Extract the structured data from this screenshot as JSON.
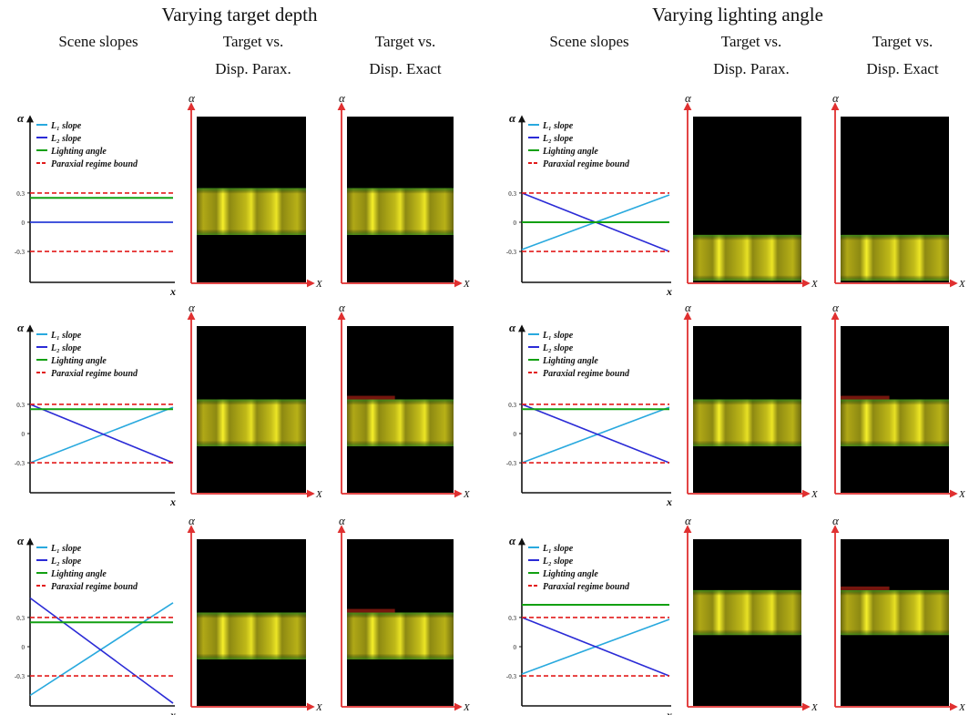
{
  "headings": {
    "left_title": "Varying target depth",
    "right_title": "Varying lighting angle",
    "col_scene": "Scene slopes",
    "col_parax_line1": "Target vs.",
    "col_parax_line2": "Disp. Parax.",
    "col_exact_line1": "Target vs.",
    "col_exact_line2": "Disp. Exact"
  },
  "axes": {
    "slope_y_label": "α",
    "slope_x_label": "x",
    "image_y_label": "α",
    "image_x_label": "X",
    "ticks": [
      "0.3",
      "0",
      "-0.3"
    ]
  },
  "legend": {
    "l1": "L₁ slope",
    "l2": "L₂ slope",
    "light": "Lighting angle",
    "bound": "Paraxial regime bound"
  },
  "colors": {
    "l1": "#29a9de",
    "l2": "#2b2bd6",
    "light": "#12a012",
    "bound": "#e21b1b",
    "axis": "#e03030",
    "band": "#d9d21a"
  },
  "chart_data": [
    {
      "type": "line",
      "group": "Varying target depth",
      "row": 1,
      "ylim": [
        -0.6,
        0.6
      ],
      "tick_values": [
        0.3,
        0,
        -0.3
      ],
      "series": [
        {
          "name": "L₁ slope",
          "x": [
            0,
            1
          ],
          "y": [
            0,
            0
          ]
        },
        {
          "name": "L₂ slope",
          "x": [
            0,
            1
          ],
          "y": [
            0,
            0
          ]
        },
        {
          "name": "Lighting angle",
          "x": [
            0,
            1
          ],
          "y": [
            0.25,
            0.25
          ]
        },
        {
          "name": "Paraxial regime bound",
          "x": [
            0,
            1
          ],
          "y": [
            0.3,
            0.3
          ]
        },
        {
          "name": "Paraxial regime bound",
          "x": [
            0,
            1
          ],
          "y": [
            -0.3,
            -0.3
          ]
        }
      ],
      "parax_band": [
        0.35,
        -0.13
      ],
      "exact_band": [
        0.35,
        -0.13
      ]
    },
    {
      "type": "line",
      "group": "Varying target depth",
      "row": 2,
      "ylim": [
        -0.6,
        0.6
      ],
      "tick_values": [
        0.3,
        0,
        -0.3
      ],
      "series": [
        {
          "name": "L₁ slope",
          "x": [
            0,
            1
          ],
          "y": [
            -0.3,
            0.27
          ]
        },
        {
          "name": "L₂ slope",
          "x": [
            0,
            1
          ],
          "y": [
            0.3,
            -0.3
          ]
        },
        {
          "name": "Lighting angle",
          "x": [
            0,
            1
          ],
          "y": [
            0.25,
            0.25
          ]
        },
        {
          "name": "Paraxial regime bound",
          "x": [
            0,
            1
          ],
          "y": [
            0.3,
            0.3
          ]
        },
        {
          "name": "Paraxial regime bound",
          "x": [
            0,
            1
          ],
          "y": [
            -0.3,
            -0.3
          ]
        }
      ],
      "parax_band": [
        0.35,
        -0.13
      ],
      "exact_band": [
        0.35,
        -0.13
      ]
    },
    {
      "type": "line",
      "group": "Varying target depth",
      "row": 3,
      "ylim": [
        -0.6,
        0.6
      ],
      "tick_values": [
        0.3,
        0,
        -0.3
      ],
      "series": [
        {
          "name": "L₁ slope",
          "x": [
            0,
            1
          ],
          "y": [
            -0.5,
            0.45
          ]
        },
        {
          "name": "L₂ slope",
          "x": [
            0,
            1
          ],
          "y": [
            0.5,
            -0.58
          ]
        },
        {
          "name": "Lighting angle",
          "x": [
            0,
            1
          ],
          "y": [
            0.25,
            0.25
          ]
        },
        {
          "name": "Paraxial regime bound",
          "x": [
            0,
            1
          ],
          "y": [
            0.3,
            0.3
          ]
        },
        {
          "name": "Paraxial regime bound",
          "x": [
            0,
            1
          ],
          "y": [
            -0.3,
            -0.3
          ]
        }
      ],
      "parax_band": [
        0.35,
        -0.13
      ],
      "exact_band": [
        0.35,
        -0.13
      ]
    },
    {
      "type": "line",
      "group": "Varying lighting angle",
      "row": 1,
      "ylim": [
        -0.6,
        0.6
      ],
      "tick_values": [
        0.3,
        0,
        -0.3
      ],
      "series": [
        {
          "name": "L₁ slope",
          "x": [
            0,
            1
          ],
          "y": [
            -0.28,
            0.28
          ]
        },
        {
          "name": "L₂ slope",
          "x": [
            0,
            1
          ],
          "y": [
            0.3,
            -0.3
          ]
        },
        {
          "name": "Lighting angle",
          "x": [
            0,
            1
          ],
          "y": [
            0,
            0
          ]
        },
        {
          "name": "Paraxial regime bound",
          "x": [
            0,
            1
          ],
          "y": [
            0.3,
            0.3
          ]
        },
        {
          "name": "Paraxial regime bound",
          "x": [
            0,
            1
          ],
          "y": [
            -0.3,
            -0.3
          ]
        }
      ],
      "parax_band": [
        -0.13,
        -0.6
      ],
      "exact_band": [
        -0.13,
        -0.6
      ]
    },
    {
      "type": "line",
      "group": "Varying lighting angle",
      "row": 2,
      "ylim": [
        -0.6,
        0.6
      ],
      "tick_values": [
        0.3,
        0,
        -0.3
      ],
      "series": [
        {
          "name": "L₁ slope",
          "x": [
            0,
            1
          ],
          "y": [
            -0.3,
            0.27
          ]
        },
        {
          "name": "L₂ slope",
          "x": [
            0,
            1
          ],
          "y": [
            0.3,
            -0.3
          ]
        },
        {
          "name": "Lighting angle",
          "x": [
            0,
            1
          ],
          "y": [
            0.25,
            0.25
          ]
        },
        {
          "name": "Paraxial regime bound",
          "x": [
            0,
            1
          ],
          "y": [
            0.3,
            0.3
          ]
        },
        {
          "name": "Paraxial regime bound",
          "x": [
            0,
            1
          ],
          "y": [
            -0.3,
            -0.3
          ]
        }
      ],
      "parax_band": [
        0.35,
        -0.13
      ],
      "exact_band": [
        0.35,
        -0.13
      ]
    },
    {
      "type": "line",
      "group": "Varying lighting angle",
      "row": 3,
      "ylim": [
        -0.6,
        0.6
      ],
      "tick_values": [
        0.3,
        0,
        -0.3
      ],
      "series": [
        {
          "name": "L₁ slope",
          "x": [
            0,
            1
          ],
          "y": [
            -0.28,
            0.28
          ]
        },
        {
          "name": "L₂ slope",
          "x": [
            0,
            1
          ],
          "y": [
            0.3,
            -0.3
          ]
        },
        {
          "name": "Lighting angle",
          "x": [
            0,
            1
          ],
          "y": [
            0.43,
            0.43
          ]
        },
        {
          "name": "Paraxial regime bound",
          "x": [
            0,
            1
          ],
          "y": [
            0.3,
            0.3
          ]
        },
        {
          "name": "Paraxial regime bound",
          "x": [
            0,
            1
          ],
          "y": [
            -0.3,
            -0.3
          ]
        }
      ],
      "parax_band": [
        0.58,
        0.12
      ],
      "exact_band": [
        0.58,
        0.12
      ]
    }
  ]
}
